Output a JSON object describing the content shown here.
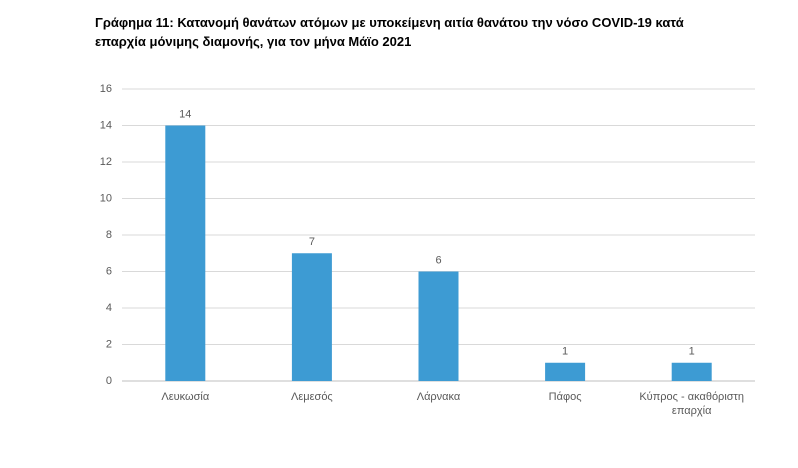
{
  "chart_data": {
    "type": "bar",
    "title": "Γράφημα 11: Κατανομή θανάτων ατόμων με υποκείμενη αιτία θανάτου την νόσο COVID-19 κατά επαρχία μόνιμης διαμονής, για τον μήνα Μάϊο 2021",
    "categories": [
      "Λευκωσία",
      "Λεμεσός",
      "Λάρνακα",
      "Πάφος",
      "Κύπρος - ακαθόριστη επαρχία"
    ],
    "values": [
      14,
      7,
      6,
      1,
      1
    ],
    "color": "#3d9bd3",
    "ylim": [
      0,
      16
    ],
    "yticks": [
      0,
      2,
      4,
      6,
      8,
      10,
      12,
      14,
      16
    ],
    "grid": true
  }
}
